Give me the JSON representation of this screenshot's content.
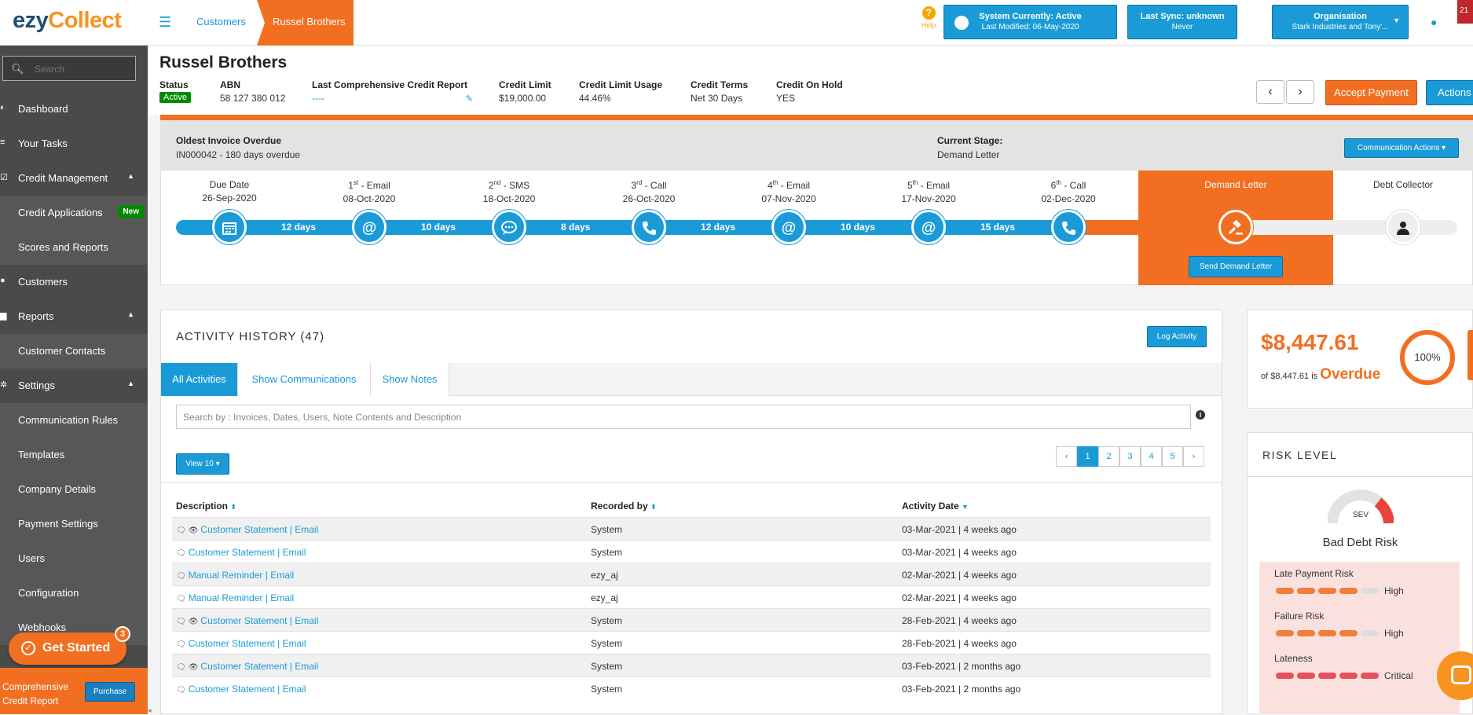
{
  "app": {
    "logo_main": "ezy",
    "logo_accent": "Collect"
  },
  "search": {
    "placeholder": "Search"
  },
  "sidebar": {
    "items": [
      {
        "label": "Dashboard",
        "icon": "dashboard-icon"
      },
      {
        "label": "Your Tasks",
        "icon": "tasks-icon"
      },
      {
        "label": "Credit Management",
        "icon": "check-square-icon"
      },
      {
        "label": "Credit Applications",
        "badge": "New"
      },
      {
        "label": "Scores and Reports"
      },
      {
        "label": "Customers",
        "icon": "users-icon"
      },
      {
        "label": "Reports",
        "icon": "book-icon"
      },
      {
        "label": "Customer Contacts"
      },
      {
        "label": "Settings",
        "icon": "cogs-icon"
      },
      {
        "label": "Communication Rules"
      },
      {
        "label": "Templates"
      },
      {
        "label": "Company Details"
      },
      {
        "label": "Payment Settings"
      },
      {
        "label": "Users"
      },
      {
        "label": "Configuration"
      },
      {
        "label": "Webhooks"
      }
    ],
    "get_started": {
      "label": "Get Started",
      "count": "3"
    },
    "ccr": {
      "line1": "Comprehensive",
      "line2": "Credit Report",
      "button": "Purchase"
    }
  },
  "header": {
    "breadcrumb": [
      "Customers",
      "Russel Brothers"
    ],
    "help": "Help",
    "system": {
      "title": "System Currently: Active",
      "sub": "Last Modified: 06-May-2020"
    },
    "sync": {
      "title": "Last Sync: unknown",
      "sub": "Never"
    },
    "org": {
      "title": "Organisation",
      "sub": "Stark Industries and Tony'..."
    },
    "notification_count": "21"
  },
  "customer": {
    "name": "Russel Brothers",
    "fields": [
      {
        "key": "Status",
        "value": "Active"
      },
      {
        "key": "ABN",
        "value": "58 127 380 012"
      },
      {
        "key": "Last Comprehensive Credit Report",
        "value": "----"
      },
      {
        "key": "Credit Limit",
        "value": "$19,000.00"
      },
      {
        "key": "Credit Limit Usage",
        "value": "44.46%"
      },
      {
        "key": "Credit Terms",
        "value": "Net 30 Days"
      },
      {
        "key": "Credit On Hold",
        "value": "YES"
      }
    ],
    "accept_payment": "Accept Payment",
    "actions": "Actions"
  },
  "timeline": {
    "oldest_label": "Oldest Invoice Overdue",
    "oldest_value": "IN000042 - 180 days overdue",
    "stage_label": "Current Stage:",
    "stage_value": "Demand Letter",
    "comm_actions": "Communication Actions",
    "stages": [
      {
        "num": "",
        "sup": "",
        "name": "Due Date",
        "date": "26-Sep-2020",
        "icon": "calendar-icon"
      },
      {
        "num": "1",
        "sup": "st",
        "name": " - Email",
        "date": "08-Oct-2020",
        "icon": "at-icon"
      },
      {
        "num": "2",
        "sup": "nd",
        "name": " - SMS",
        "date": "18-Oct-2020",
        "icon": "sms-icon"
      },
      {
        "num": "3",
        "sup": "rd",
        "name": " - Call",
        "date": "26-Oct-2020",
        "icon": "phone-icon"
      },
      {
        "num": "4",
        "sup": "th",
        "name": " - Email",
        "date": "07-Nov-2020",
        "icon": "at-icon"
      },
      {
        "num": "5",
        "sup": "th",
        "name": " - Email",
        "date": "17-Nov-2020",
        "icon": "at-icon"
      },
      {
        "num": "6",
        "sup": "th",
        "name": " - Call",
        "date": "02-Dec-2020",
        "icon": "phone-icon"
      },
      {
        "num": "",
        "sup": "",
        "name": "Demand Letter",
        "date": "",
        "icon": "gavel-icon"
      },
      {
        "num": "",
        "sup": "",
        "name": "Debt Collector",
        "date": "",
        "icon": "person-icon"
      }
    ],
    "gaps": [
      "12 days",
      "10 days",
      "8 days",
      "12 days",
      "10 days",
      "15 days"
    ],
    "send_demand": "Send Demand Letter"
  },
  "activity": {
    "title": "ACTIVITY HISTORY (47)",
    "log_activity": "Log Activity",
    "tabs": [
      "All Activities",
      "Show Communications",
      "Show Notes"
    ],
    "search_placeholder": "Search by : Invoices, Dates, Users, Note Contents and Description",
    "view": "View 10",
    "pages": [
      "1",
      "2",
      "3",
      "4",
      "5"
    ],
    "columns": [
      "Description",
      "Recorded by",
      "Activity Date"
    ],
    "rows": [
      {
        "desc": "Customer Statement | Email",
        "by": "System",
        "date": "03-Mar-2021 | 4 weeks ago",
        "viewed": true
      },
      {
        "desc": "Customer Statement | Email",
        "by": "System",
        "date": "03-Mar-2021 | 4 weeks ago",
        "viewed": false
      },
      {
        "desc": "Manual Reminder | Email",
        "by": "ezy_aj",
        "date": "02-Mar-2021 | 4 weeks ago",
        "viewed": false
      },
      {
        "desc": "Manual Reminder | Email",
        "by": "ezy_aj",
        "date": "02-Mar-2021 | 4 weeks ago",
        "viewed": false
      },
      {
        "desc": "Customer Statement | Email",
        "by": "System",
        "date": "28-Feb-2021 | 4 weeks ago",
        "viewed": true
      },
      {
        "desc": "Customer Statement | Email",
        "by": "System",
        "date": "28-Feb-2021 | 4 weeks ago",
        "viewed": false
      },
      {
        "desc": "Customer Statement | Email",
        "by": "System",
        "date": "03-Feb-2021 | 2 months ago",
        "viewed": true
      },
      {
        "desc": "Customer Statement | Email",
        "by": "System",
        "date": "03-Feb-2021 | 2 months ago",
        "viewed": false
      }
    ]
  },
  "overdue": {
    "amount": "$8,447.61",
    "of_text": "of $8,447.61 is",
    "label": "Overdue",
    "percent": "100%"
  },
  "risk": {
    "title": "RISK LEVEL",
    "gauge_label": "SEV",
    "bad_debt": "Bad Debt Risk",
    "items": [
      {
        "name": "Late Payment Risk",
        "level": "High",
        "filled": 4,
        "color": "#f07f3c"
      },
      {
        "name": "Failure Risk",
        "level": "High",
        "filled": 4,
        "color": "#f07f3c"
      },
      {
        "name": "Lateness",
        "level": "Critical",
        "filled": 5,
        "color": "#e8505b"
      }
    ]
  }
}
